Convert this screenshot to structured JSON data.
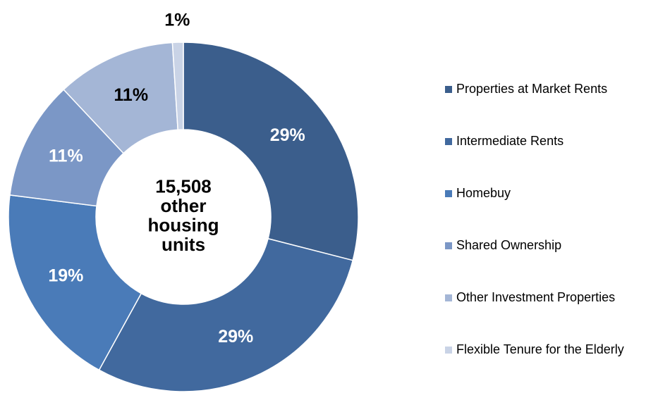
{
  "chart_data": {
    "type": "donut",
    "center_label": [
      "15,508",
      "other",
      "housing",
      "units"
    ],
    "categories": [
      "Properties at Market Rents",
      "Intermediate Rents",
      "Homebuy",
      "Shared Ownership",
      "Other Investment Properties",
      "Flexible Tenure for the Elderly"
    ],
    "values": [
      29,
      29,
      19,
      11,
      11,
      1
    ],
    "value_labels": [
      "29%",
      "29%",
      "19%",
      "11%",
      "11%",
      "1%"
    ],
    "colors": [
      "#3b5e8c",
      "#41699e",
      "#4a7bb8",
      "#7b97c6",
      "#a4b6d6",
      "#c9d3e6"
    ],
    "legend": "right"
  }
}
